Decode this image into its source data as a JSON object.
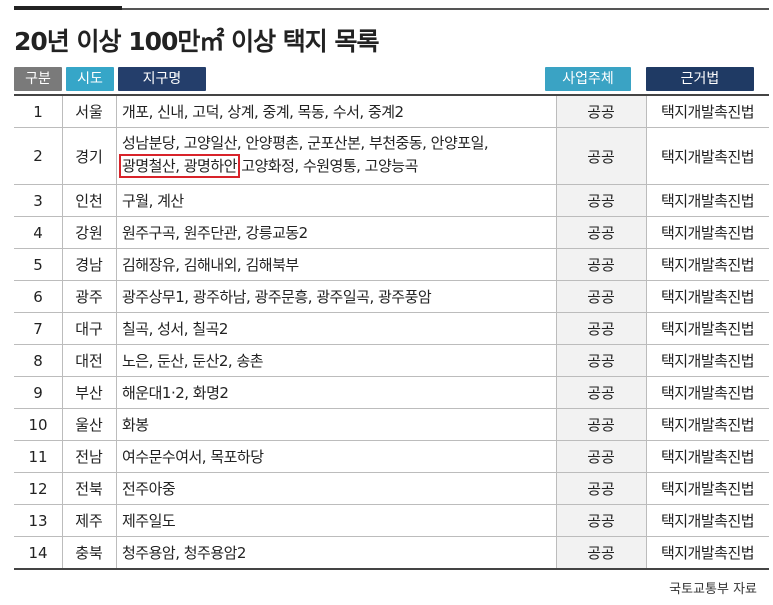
{
  "title": "20년 이상 100만㎡ 이상 택지 목록",
  "headers": {
    "no": "구분",
    "city": "시도",
    "district": "지구명",
    "operator": "사업주체",
    "law": "근거법"
  },
  "rows": [
    {
      "no": "1",
      "city": "서울",
      "district": "개포, 신내, 고덕, 상계, 중계, 목동, 수서, 중계2",
      "operator": "공공",
      "law": "택지개발촉진법"
    },
    {
      "no": "2",
      "city": "경기",
      "district_line1": "성남분당, 고양일산, 안양평촌, 군포산본, 부천중동, 안양포일,",
      "district_highlight": "광명철산, 광명하안",
      "district_line2_rest": " 고양화정, 수원영통, 고양능곡",
      "operator": "공공",
      "law": "택지개발촉진법"
    },
    {
      "no": "3",
      "city": "인천",
      "district": "구월, 계산",
      "operator": "공공",
      "law": "택지개발촉진법"
    },
    {
      "no": "4",
      "city": "강원",
      "district": "원주구곡, 원주단관, 강릉교동2",
      "operator": "공공",
      "law": "택지개발촉진법"
    },
    {
      "no": "5",
      "city": "경남",
      "district": "김해장유, 김해내외, 김해북부",
      "operator": "공공",
      "law": "택지개발촉진법"
    },
    {
      "no": "6",
      "city": "광주",
      "district": "광주상무1, 광주하남, 광주문흥, 광주일곡, 광주풍암",
      "operator": "공공",
      "law": "택지개발촉진법"
    },
    {
      "no": "7",
      "city": "대구",
      "district": "칠곡, 성서, 칠곡2",
      "operator": "공공",
      "law": "택지개발촉진법"
    },
    {
      "no": "8",
      "city": "대전",
      "district": "노은, 둔산, 둔산2, 송촌",
      "operator": "공공",
      "law": "택지개발촉진법"
    },
    {
      "no": "9",
      "city": "부산",
      "district": "해운대1·2, 화명2",
      "operator": "공공",
      "law": "택지개발촉진법"
    },
    {
      "no": "10",
      "city": "울산",
      "district": "화봉",
      "operator": "공공",
      "law": "택지개발촉진법"
    },
    {
      "no": "11",
      "city": "전남",
      "district": "여수문수여서, 목포하당",
      "operator": "공공",
      "law": "택지개발촉진법"
    },
    {
      "no": "12",
      "city": "전북",
      "district": "전주아중",
      "operator": "공공",
      "law": "택지개발촉진법"
    },
    {
      "no": "13",
      "city": "제주",
      "district": "제주일도",
      "operator": "공공",
      "law": "택지개발촉진법"
    },
    {
      "no": "14",
      "city": "충북",
      "district": "청주용암, 청주용암2",
      "operator": "공공",
      "law": "택지개발촉진법"
    }
  ],
  "source": "국토교통부 자료",
  "colors": {
    "header_no": "#7a7a7a",
    "header_city": "#36a6c8",
    "header_district": "#243e6b",
    "header_operator": "#3aa3c4",
    "header_law": "#1f3a64",
    "highlight_box": "#d8232a"
  }
}
